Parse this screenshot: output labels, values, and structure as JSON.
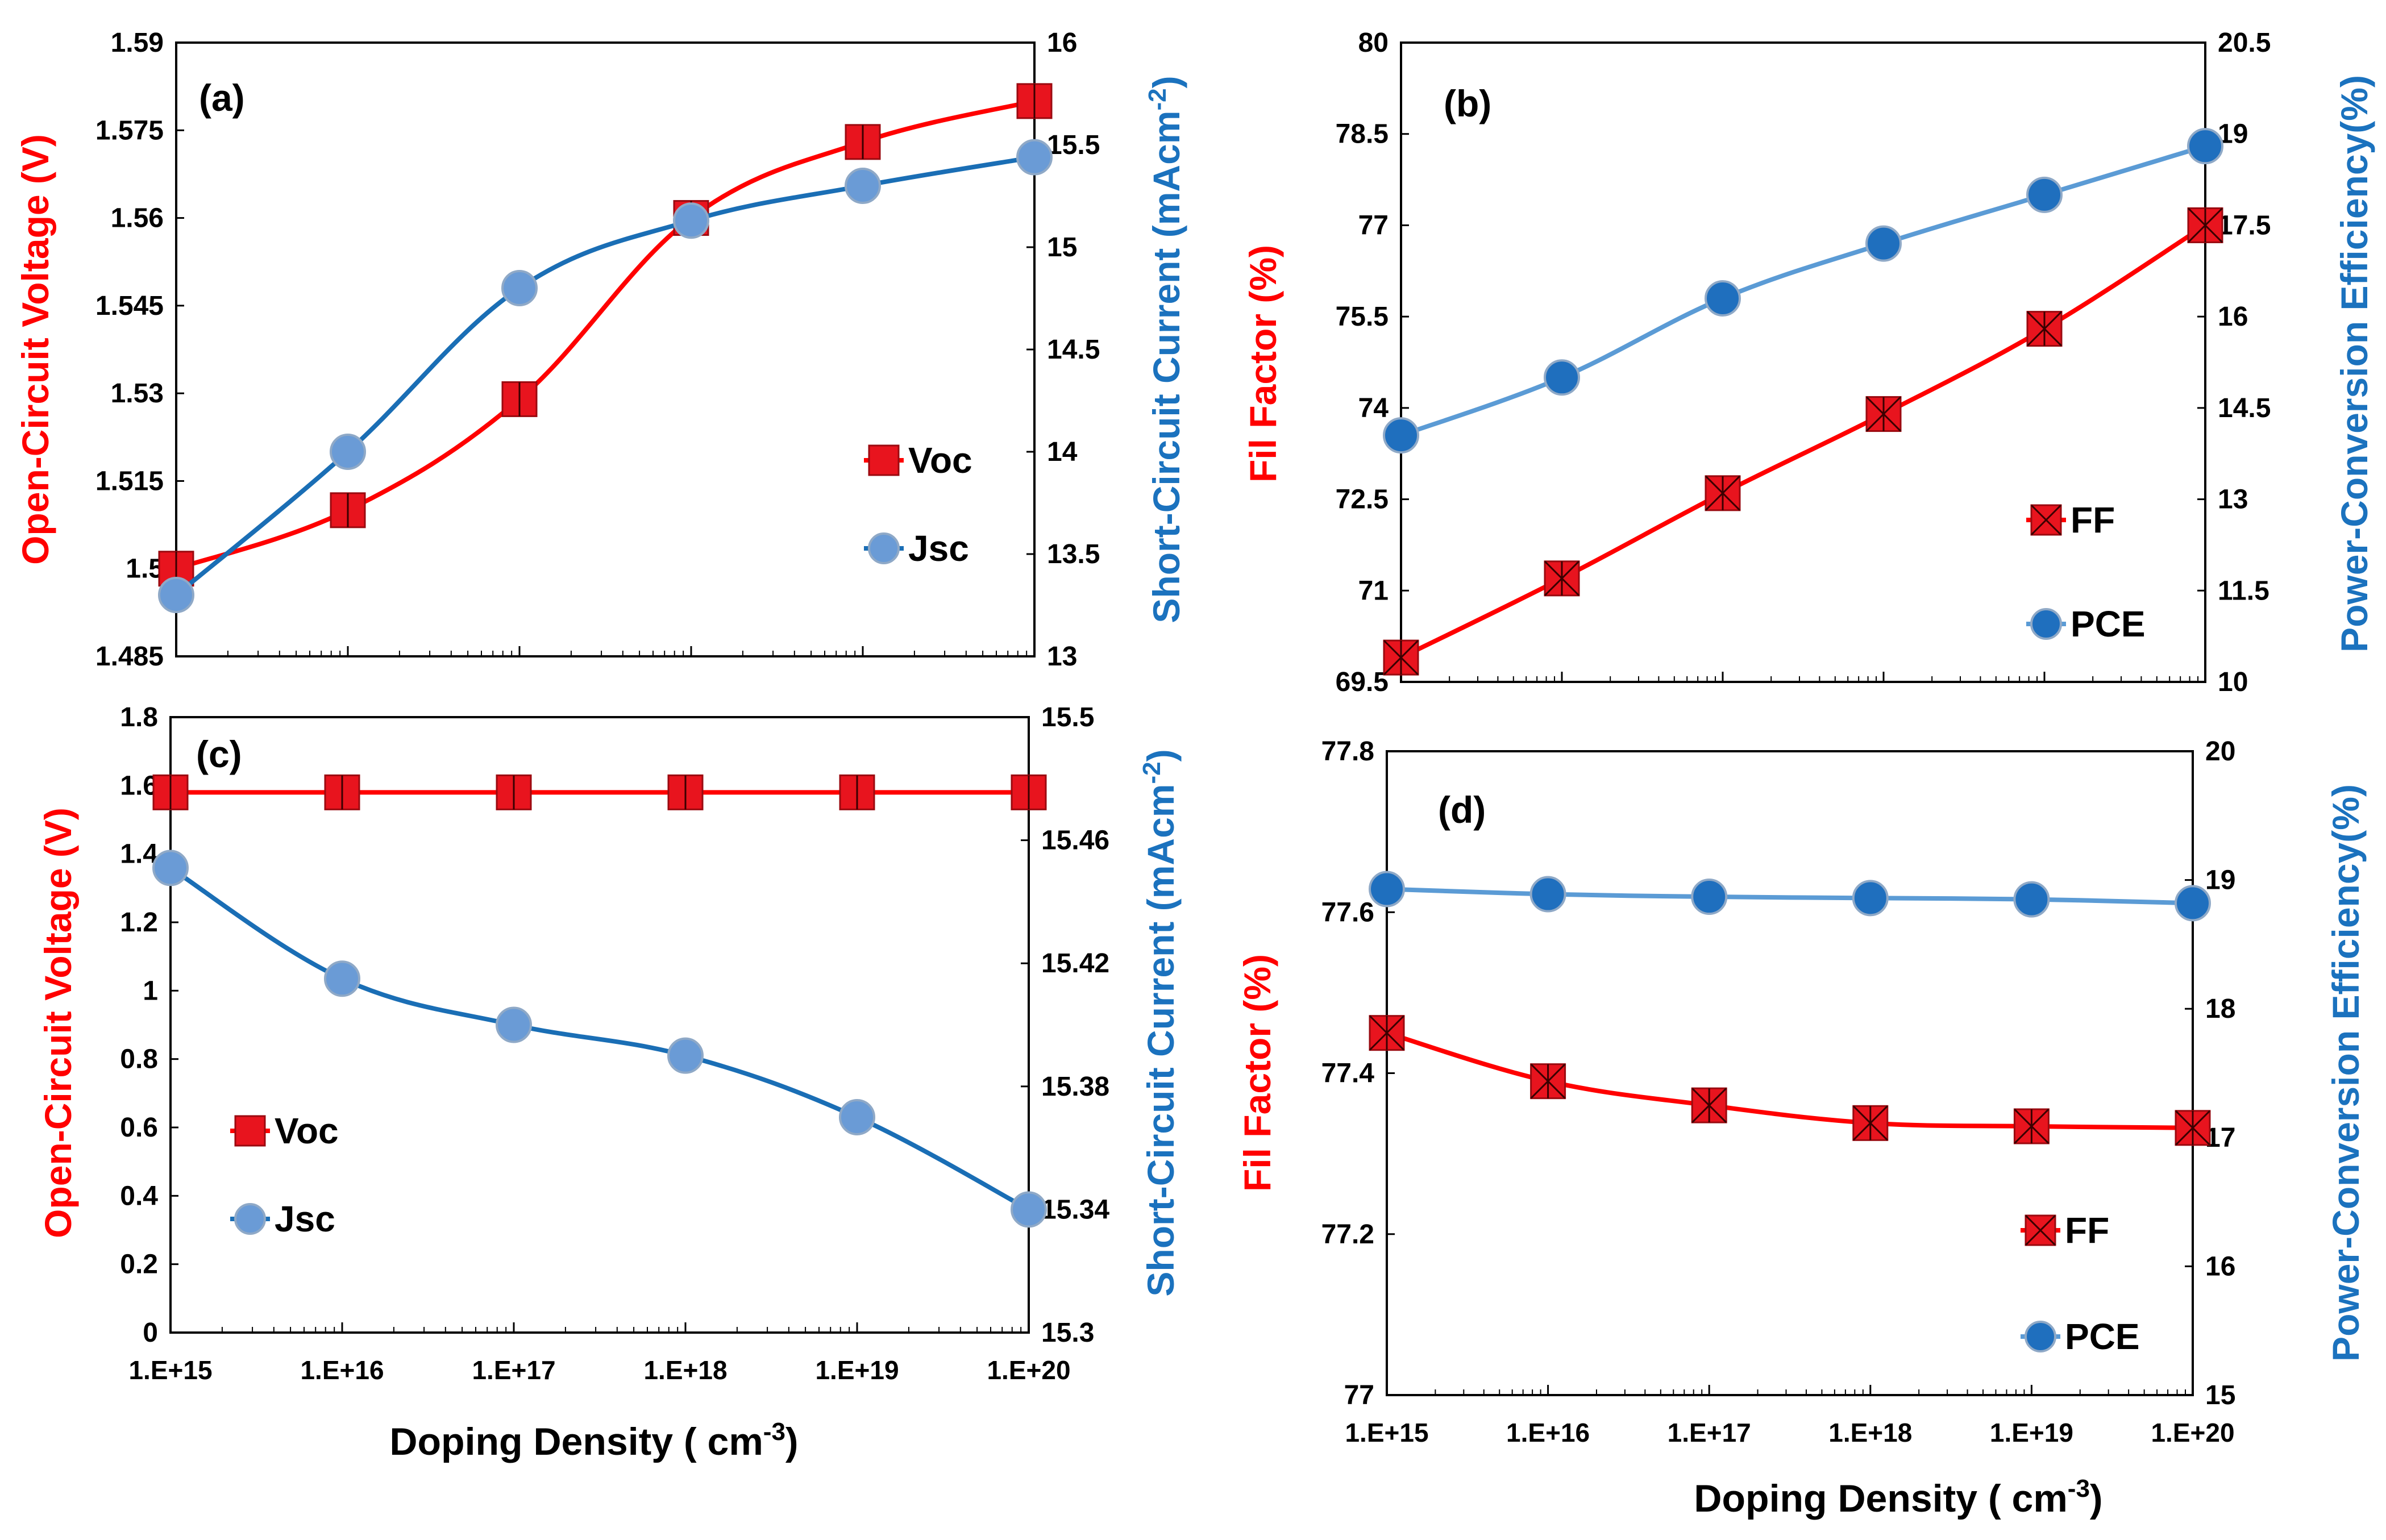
{
  "colors": {
    "red": "#FF0000",
    "red_marker_fill": "#E8141E",
    "blue_line": "#1A6EB5",
    "blue_marker": "#6A9BD6",
    "blue_label": "#1B72BE",
    "blue_light_line": "#5B9BD5",
    "blue_dark_marker": "#1F6FBE"
  },
  "shared": {
    "x_categories": [
      "1.E+15",
      "1.E+16",
      "1.E+17",
      "1.E+18",
      "1.E+19",
      "1.E+20"
    ],
    "x_title": "Doping Density ( cm",
    "x_title_sup": "-3",
    "x_title_end": ")"
  },
  "chart_data": [
    {
      "panel": "(a)",
      "type": "line",
      "categories": [
        "1.E+15",
        "1.E+16",
        "1.E+17",
        "1.E+18",
        "1.E+19",
        "1.E+20"
      ],
      "left_axis": {
        "label": "Open-Circuit Voltage (V)",
        "ylim": [
          1.485,
          1.59
        ],
        "ticks": [
          "1.485",
          "1.5",
          "1.515",
          "1.53",
          "1.545",
          "1.56",
          "1.575",
          "1.59"
        ]
      },
      "right_axis": {
        "label": "Short-Circuit Current (mAcm",
        "label_sup": "-2",
        "label_end": ")",
        "ylim": [
          13,
          16
        ],
        "ticks": [
          "13",
          "13.5",
          "14",
          "14.5",
          "15",
          "15.5",
          "16"
        ]
      },
      "series": [
        {
          "name": "Voc",
          "axis": "left",
          "values": [
            1.5,
            1.51,
            1.529,
            1.56,
            1.573,
            1.58
          ]
        },
        {
          "name": "Jsc",
          "axis": "right",
          "values": [
            13.3,
            14.0,
            14.8,
            15.13,
            15.3,
            15.44
          ]
        }
      ],
      "legend": [
        "Voc",
        "Jsc"
      ]
    },
    {
      "panel": "(b)",
      "type": "line",
      "categories": [
        "1.E+15",
        "1.E+16",
        "1.E+17",
        "1.E+18",
        "1.E+19",
        "1.E+20"
      ],
      "left_axis": {
        "label": "Fil Factor (%)",
        "ylim": [
          69.5,
          80
        ],
        "ticks": [
          "69.5",
          "71",
          "72.5",
          "74",
          "75.5",
          "77",
          "78.5",
          "80"
        ]
      },
      "right_axis": {
        "label": "Power-Conversion Efficiency(%)",
        "ylim": [
          10,
          20.5
        ],
        "ticks": [
          "10",
          "11.5",
          "13",
          "14.5",
          "16",
          "17.5",
          "19",
          "20.5"
        ]
      },
      "series": [
        {
          "name": "FF",
          "axis": "left",
          "values": [
            69.9,
            71.2,
            72.6,
            73.9,
            75.3,
            77.0
          ]
        },
        {
          "name": "PCE",
          "axis": "right",
          "values": [
            14.05,
            15.0,
            16.3,
            17.2,
            18.0,
            18.8
          ]
        }
      ],
      "legend": [
        "FF",
        "PCE"
      ]
    },
    {
      "panel": "(c)",
      "type": "line",
      "categories": [
        "1.E+15",
        "1.E+16",
        "1.E+17",
        "1.E+18",
        "1.E+19",
        "1.E+20"
      ],
      "left_axis": {
        "label": "Open-Circuit Voltage (V)",
        "ylim": [
          0,
          1.8
        ],
        "ticks": [
          "0",
          "0.2",
          "0.4",
          "0.6",
          "0.8",
          "1",
          "1.2",
          "1.4",
          "1.6",
          "1.8"
        ]
      },
      "right_axis": {
        "label": "Short-Circuit Current (mAcm",
        "label_sup": "-2",
        "label_end": ")",
        "ylim": [
          15.3,
          15.5
        ],
        "ticks": [
          "15.3",
          "15.34",
          "15.38",
          "15.42",
          "15.46",
          "15.5"
        ]
      },
      "series": [
        {
          "name": "Voc",
          "axis": "left",
          "values": [
            1.58,
            1.58,
            1.58,
            1.58,
            1.58,
            1.58
          ]
        },
        {
          "name": "Jsc",
          "axis": "right",
          "values": [
            15.451,
            15.415,
            15.4,
            15.39,
            15.37,
            15.34
          ]
        }
      ],
      "legend": [
        "Voc",
        "Jsc"
      ]
    },
    {
      "panel": "(d)",
      "type": "line",
      "categories": [
        "1.E+15",
        "1.E+16",
        "1.E+17",
        "1.E+18",
        "1.E+19",
        "1.E+20"
      ],
      "left_axis": {
        "label": "Fil Factor (%)",
        "ylim": [
          77,
          77.8
        ],
        "ticks": [
          "77",
          "77.2",
          "77.4",
          "77.6",
          "77.8"
        ]
      },
      "right_axis": {
        "label": "Power-Conversion Efficiency(%)",
        "ylim": [
          15,
          20
        ],
        "ticks": [
          "15",
          "16",
          "17",
          "18",
          "19",
          "20"
        ]
      },
      "series": [
        {
          "name": "FF",
          "axis": "left",
          "values": [
            77.45,
            77.39,
            77.36,
            77.338,
            77.334,
            77.332
          ]
        },
        {
          "name": "PCE",
          "axis": "right",
          "values": [
            18.93,
            18.89,
            18.87,
            18.86,
            18.85,
            18.82
          ]
        }
      ],
      "legend": [
        "FF",
        "PCE"
      ]
    }
  ]
}
